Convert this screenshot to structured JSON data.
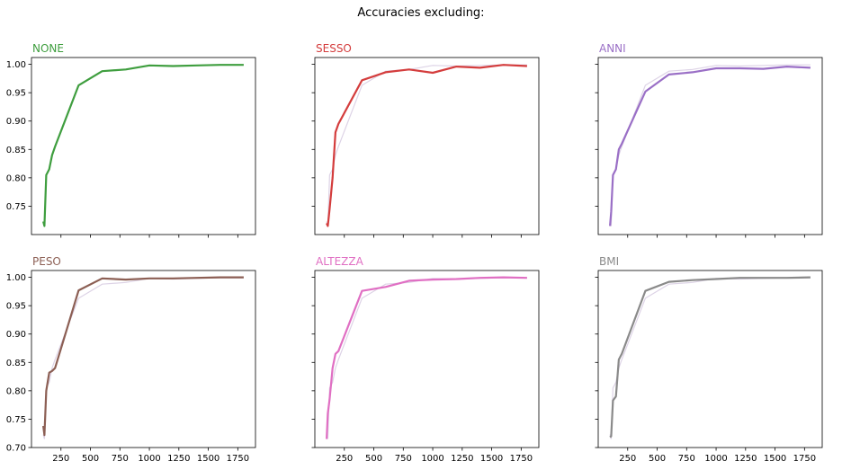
{
  "figure": {
    "title": "Accuracies excluding:"
  },
  "chart_data": [
    {
      "type": "line",
      "title": "NONE",
      "color": "#3f9e3f",
      "xlim": [
        0,
        1900
      ],
      "ylim": [
        0.7,
        1.012
      ],
      "xticks": [
        250,
        500,
        750,
        1000,
        1250,
        1500,
        1750
      ],
      "yticks": [
        0.75,
        0.8,
        0.85,
        0.9,
        0.95,
        1.0
      ],
      "show_xtick_labels": false,
      "show_ytick_labels": true,
      "series": [
        {
          "x": [
            100,
            110,
            125,
            150,
            175,
            200,
            400,
            600,
            800,
            1000,
            1200,
            1400,
            1600,
            1800
          ],
          "y": [
            0.723,
            0.715,
            0.805,
            0.815,
            0.84,
            0.855,
            0.963,
            0.988,
            0.991,
            0.998,
            0.997,
            0.998,
            0.999,
            0.999
          ]
        }
      ],
      "reference": {
        "x": [
          100,
          110,
          125,
          150,
          175,
          200,
          400,
          600,
          800,
          1000,
          1200,
          1400,
          1600,
          1800
        ],
        "y": [
          0.723,
          0.715,
          0.805,
          0.815,
          0.84,
          0.855,
          0.963,
          0.988,
          0.991,
          0.998,
          0.997,
          0.998,
          0.999,
          0.999
        ]
      }
    },
    {
      "type": "line",
      "title": "SESSO",
      "color": "#d43d3d",
      "xlim": [
        0,
        1900
      ],
      "ylim": [
        0.7,
        1.012
      ],
      "xticks": [
        250,
        500,
        750,
        1000,
        1250,
        1500,
        1750
      ],
      "yticks": [
        0.75,
        0.8,
        0.85,
        0.9,
        0.95,
        1.0
      ],
      "show_xtick_labels": false,
      "show_ytick_labels": false,
      "series": [
        {
          "x": [
            100,
            110,
            125,
            150,
            175,
            200,
            400,
            600,
            800,
            1000,
            1200,
            1400,
            1600,
            1800
          ],
          "y": [
            0.72,
            0.715,
            0.745,
            0.8,
            0.88,
            0.895,
            0.972,
            0.986,
            0.991,
            0.985,
            0.996,
            0.994,
            0.999,
            0.997
          ]
        }
      ],
      "reference": {
        "x": [
          100,
          110,
          125,
          150,
          175,
          200,
          400,
          600,
          800,
          1000,
          1200,
          1400,
          1600,
          1800
        ],
        "y": [
          0.723,
          0.715,
          0.805,
          0.815,
          0.84,
          0.855,
          0.963,
          0.988,
          0.991,
          0.998,
          0.997,
          0.998,
          0.999,
          0.999
        ]
      }
    },
    {
      "type": "line",
      "title": "ANNI",
      "color": "#9a6fc6",
      "xlim": [
        0,
        1900
      ],
      "ylim": [
        0.7,
        1.012
      ],
      "xticks": [
        250,
        500,
        750,
        1000,
        1250,
        1500,
        1750
      ],
      "yticks": [
        0.75,
        0.8,
        0.85,
        0.9,
        0.95,
        1.0
      ],
      "show_xtick_labels": false,
      "show_ytick_labels": false,
      "series": [
        {
          "x": [
            100,
            110,
            125,
            150,
            175,
            200,
            400,
            600,
            800,
            1000,
            1200,
            1400,
            1600,
            1800
          ],
          "y": [
            0.715,
            0.74,
            0.805,
            0.815,
            0.85,
            0.86,
            0.952,
            0.982,
            0.986,
            0.993,
            0.993,
            0.992,
            0.996,
            0.994
          ]
        }
      ],
      "reference": {
        "x": [
          100,
          110,
          125,
          150,
          175,
          200,
          400,
          600,
          800,
          1000,
          1200,
          1400,
          1600,
          1800
        ],
        "y": [
          0.723,
          0.715,
          0.805,
          0.815,
          0.84,
          0.855,
          0.963,
          0.988,
          0.991,
          0.998,
          0.997,
          0.998,
          0.999,
          0.999
        ]
      }
    },
    {
      "type": "line",
      "title": "PESO",
      "color": "#8c5f54",
      "xlim": [
        0,
        1900
      ],
      "ylim": [
        0.7,
        1.012
      ],
      "xticks": [
        250,
        500,
        750,
        1000,
        1250,
        1500,
        1750
      ],
      "yticks": [
        0.7,
        0.75,
        0.8,
        0.85,
        0.9,
        0.95,
        1.0
      ],
      "show_xtick_labels": true,
      "show_ytick_labels": true,
      "series": [
        {
          "x": [
            100,
            110,
            125,
            150,
            175,
            200,
            400,
            600,
            800,
            1000,
            1200,
            1400,
            1600,
            1800
          ],
          "y": [
            0.738,
            0.722,
            0.8,
            0.832,
            0.835,
            0.84,
            0.977,
            0.998,
            0.996,
            0.998,
            0.998,
            0.999,
            1.0,
            1.0
          ]
        }
      ],
      "reference": {
        "x": [
          100,
          110,
          125,
          150,
          175,
          200,
          400,
          600,
          800,
          1000,
          1200,
          1400,
          1600,
          1800
        ],
        "y": [
          0.723,
          0.715,
          0.805,
          0.815,
          0.84,
          0.855,
          0.963,
          0.988,
          0.991,
          0.998,
          0.997,
          0.998,
          0.999,
          0.999
        ]
      }
    },
    {
      "type": "line",
      "title": "ALTEZZA",
      "color": "#e06fc3",
      "xlim": [
        0,
        1900
      ],
      "ylim": [
        0.7,
        1.012
      ],
      "xticks": [
        250,
        500,
        750,
        1000,
        1250,
        1500,
        1750
      ],
      "yticks": [
        0.7,
        0.75,
        0.8,
        0.85,
        0.9,
        0.95,
        1.0
      ],
      "show_xtick_labels": true,
      "show_ytick_labels": false,
      "series": [
        {
          "x": [
            100,
            110,
            125,
            150,
            175,
            200,
            400,
            600,
            800,
            1000,
            1200,
            1400,
            1600,
            1800
          ],
          "y": [
            0.715,
            0.76,
            0.785,
            0.84,
            0.865,
            0.87,
            0.976,
            0.983,
            0.994,
            0.996,
            0.997,
            0.999,
            1.0,
            0.999
          ]
        }
      ],
      "reference": {
        "x": [
          100,
          110,
          125,
          150,
          175,
          200,
          400,
          600,
          800,
          1000,
          1200,
          1400,
          1600,
          1800
        ],
        "y": [
          0.723,
          0.715,
          0.805,
          0.815,
          0.84,
          0.855,
          0.963,
          0.988,
          0.991,
          0.998,
          0.997,
          0.998,
          0.999,
          0.999
        ]
      }
    },
    {
      "type": "line",
      "title": "BMI",
      "color": "#8a8a8a",
      "xlim": [
        0,
        1900
      ],
      "ylim": [
        0.7,
        1.012
      ],
      "xticks": [
        250,
        500,
        750,
        1000,
        1250,
        1500,
        1750
      ],
      "yticks": [
        0.7,
        0.75,
        0.8,
        0.85,
        0.9,
        0.95,
        1.0
      ],
      "show_xtick_labels": true,
      "show_ytick_labels": false,
      "series": [
        {
          "x": [
            100,
            110,
            125,
            150,
            175,
            200,
            400,
            600,
            800,
            1000,
            1200,
            1400,
            1600,
            1800
          ],
          "y": [
            0.718,
            0.72,
            0.783,
            0.79,
            0.855,
            0.865,
            0.976,
            0.992,
            0.995,
            0.997,
            0.999,
            0.999,
            0.999,
            1.0
          ]
        }
      ],
      "reference": {
        "x": [
          100,
          110,
          125,
          150,
          175,
          200,
          400,
          600,
          800,
          1000,
          1200,
          1400,
          1600,
          1800
        ],
        "y": [
          0.723,
          0.715,
          0.805,
          0.815,
          0.84,
          0.855,
          0.963,
          0.988,
          0.991,
          0.998,
          0.997,
          0.998,
          0.999,
          0.999
        ]
      }
    }
  ]
}
